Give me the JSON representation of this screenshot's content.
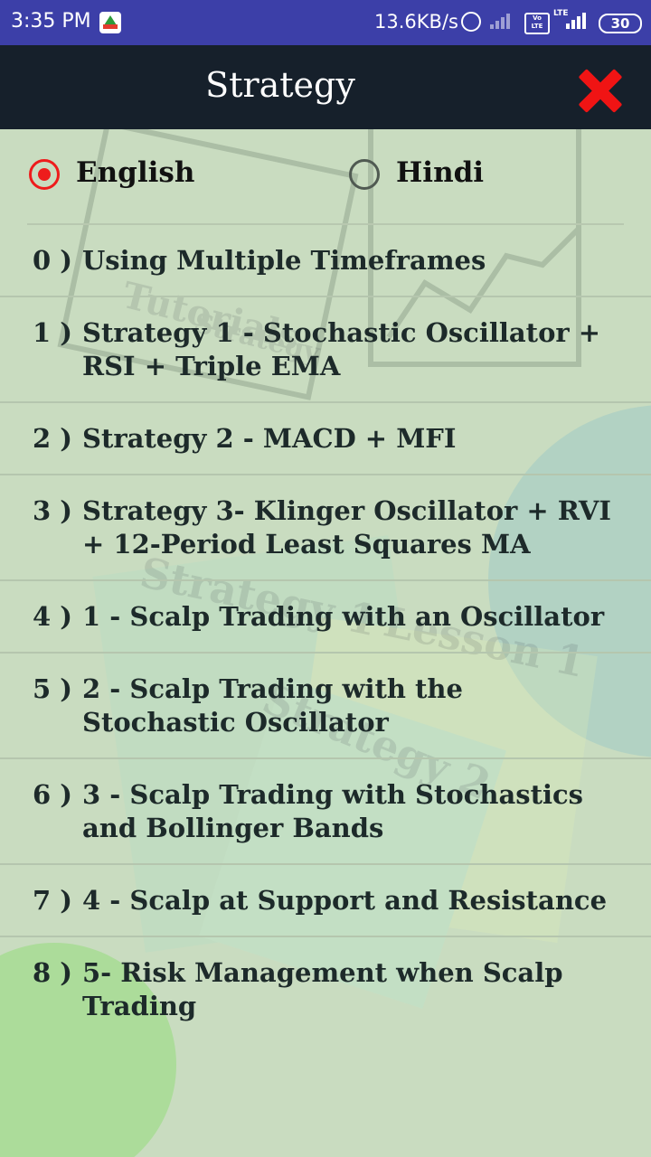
{
  "status_bar": {
    "time": "3:35 PM",
    "network_speed": "13.6KB/s",
    "volte": "Vo LTE",
    "lte": "LTE",
    "battery": "30",
    "icons": [
      "app-notification-icon",
      "alarm-icon",
      "signal-icon",
      "volte-icon",
      "lte-signal-icon",
      "battery-icon"
    ]
  },
  "header": {
    "title": "Strategy",
    "close_icon": "close-icon",
    "close_color": "#f01414"
  },
  "language": {
    "selected": "English",
    "options": [
      {
        "label": "English",
        "checked": true
      },
      {
        "label": "Hindi",
        "checked": false
      }
    ],
    "accent": "#ee1c1c"
  },
  "strategies": [
    {
      "num": "0 )",
      "title": "Using Multiple Timeframes"
    },
    {
      "num": "1 )",
      "title": "Strategy 1 - Stochastic Oscillator + RSI + Triple EMA"
    },
    {
      "num": "2 )",
      "title": "Strategy 2 - MACD + MFI"
    },
    {
      "num": "3 )",
      "title": "Strategy 3- Klinger Oscillator + RVI + 12-Period Least Squares MA"
    },
    {
      "num": "4 )",
      "title": "1 - Scalp Trading with an Oscillator"
    },
    {
      "num": "5 )",
      "title": "2 - Scalp Trading with the Stochastic Oscillator"
    },
    {
      "num": "6 )",
      "title": "3 - Scalp Trading with Stochastics and Bollinger Bands"
    },
    {
      "num": "7 )",
      "title": "4 - Scalp at Support and Resistance"
    },
    {
      "num": "8 )",
      "title": "5- Risk Management when Scalp Trading"
    }
  ],
  "background_watermarks": [
    "Tutorials",
    "Strategy",
    "Strategy 1",
    "Lesson 1",
    "Strategy 2"
  ],
  "colors": {
    "status_bar": "#3c3fa8",
    "app_bar": "#16202b",
    "background": "#c9dcc0",
    "list_text": "#1d2a2a"
  }
}
